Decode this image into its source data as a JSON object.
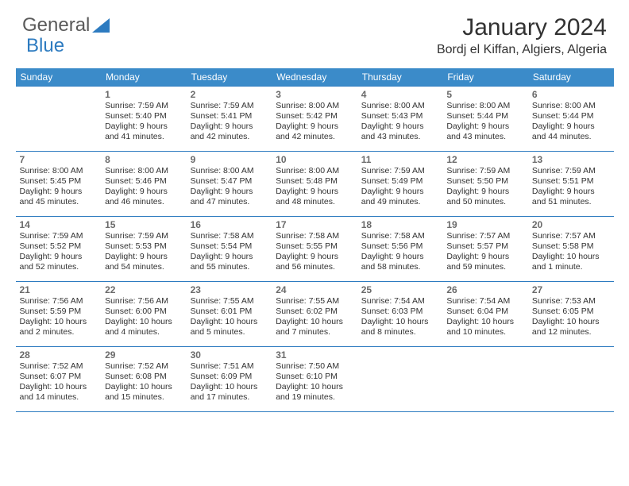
{
  "logo": {
    "part1": "General",
    "part2": "Blue"
  },
  "title": "January 2024",
  "location": "Bordj el Kiffan, Algiers, Algeria",
  "colors": {
    "header_bg": "#3b8bc9",
    "header_text": "#ffffff",
    "border": "#2d7bc0",
    "daynum": "#6a6a6a",
    "body_text": "#323232",
    "logo_gray": "#5a5a5a",
    "logo_blue": "#2d7bc0"
  },
  "weekdays": [
    "Sunday",
    "Monday",
    "Tuesday",
    "Wednesday",
    "Thursday",
    "Friday",
    "Saturday"
  ],
  "weeks": [
    [
      null,
      {
        "n": "1",
        "sr": "7:59 AM",
        "ss": "5:40 PM",
        "dl": "9 hours and 41 minutes."
      },
      {
        "n": "2",
        "sr": "7:59 AM",
        "ss": "5:41 PM",
        "dl": "9 hours and 42 minutes."
      },
      {
        "n": "3",
        "sr": "8:00 AM",
        "ss": "5:42 PM",
        "dl": "9 hours and 42 minutes."
      },
      {
        "n": "4",
        "sr": "8:00 AM",
        "ss": "5:43 PM",
        "dl": "9 hours and 43 minutes."
      },
      {
        "n": "5",
        "sr": "8:00 AM",
        "ss": "5:44 PM",
        "dl": "9 hours and 43 minutes."
      },
      {
        "n": "6",
        "sr": "8:00 AM",
        "ss": "5:44 PM",
        "dl": "9 hours and 44 minutes."
      }
    ],
    [
      {
        "n": "7",
        "sr": "8:00 AM",
        "ss": "5:45 PM",
        "dl": "9 hours and 45 minutes."
      },
      {
        "n": "8",
        "sr": "8:00 AM",
        "ss": "5:46 PM",
        "dl": "9 hours and 46 minutes."
      },
      {
        "n": "9",
        "sr": "8:00 AM",
        "ss": "5:47 PM",
        "dl": "9 hours and 47 minutes."
      },
      {
        "n": "10",
        "sr": "8:00 AM",
        "ss": "5:48 PM",
        "dl": "9 hours and 48 minutes."
      },
      {
        "n": "11",
        "sr": "7:59 AM",
        "ss": "5:49 PM",
        "dl": "9 hours and 49 minutes."
      },
      {
        "n": "12",
        "sr": "7:59 AM",
        "ss": "5:50 PM",
        "dl": "9 hours and 50 minutes."
      },
      {
        "n": "13",
        "sr": "7:59 AM",
        "ss": "5:51 PM",
        "dl": "9 hours and 51 minutes."
      }
    ],
    [
      {
        "n": "14",
        "sr": "7:59 AM",
        "ss": "5:52 PM",
        "dl": "9 hours and 52 minutes."
      },
      {
        "n": "15",
        "sr": "7:59 AM",
        "ss": "5:53 PM",
        "dl": "9 hours and 54 minutes."
      },
      {
        "n": "16",
        "sr": "7:58 AM",
        "ss": "5:54 PM",
        "dl": "9 hours and 55 minutes."
      },
      {
        "n": "17",
        "sr": "7:58 AM",
        "ss": "5:55 PM",
        "dl": "9 hours and 56 minutes."
      },
      {
        "n": "18",
        "sr": "7:58 AM",
        "ss": "5:56 PM",
        "dl": "9 hours and 58 minutes."
      },
      {
        "n": "19",
        "sr": "7:57 AM",
        "ss": "5:57 PM",
        "dl": "9 hours and 59 minutes."
      },
      {
        "n": "20",
        "sr": "7:57 AM",
        "ss": "5:58 PM",
        "dl": "10 hours and 1 minute."
      }
    ],
    [
      {
        "n": "21",
        "sr": "7:56 AM",
        "ss": "5:59 PM",
        "dl": "10 hours and 2 minutes."
      },
      {
        "n": "22",
        "sr": "7:56 AM",
        "ss": "6:00 PM",
        "dl": "10 hours and 4 minutes."
      },
      {
        "n": "23",
        "sr": "7:55 AM",
        "ss": "6:01 PM",
        "dl": "10 hours and 5 minutes."
      },
      {
        "n": "24",
        "sr": "7:55 AM",
        "ss": "6:02 PM",
        "dl": "10 hours and 7 minutes."
      },
      {
        "n": "25",
        "sr": "7:54 AM",
        "ss": "6:03 PM",
        "dl": "10 hours and 8 minutes."
      },
      {
        "n": "26",
        "sr": "7:54 AM",
        "ss": "6:04 PM",
        "dl": "10 hours and 10 minutes."
      },
      {
        "n": "27",
        "sr": "7:53 AM",
        "ss": "6:05 PM",
        "dl": "10 hours and 12 minutes."
      }
    ],
    [
      {
        "n": "28",
        "sr": "7:52 AM",
        "ss": "6:07 PM",
        "dl": "10 hours and 14 minutes."
      },
      {
        "n": "29",
        "sr": "7:52 AM",
        "ss": "6:08 PM",
        "dl": "10 hours and 15 minutes."
      },
      {
        "n": "30",
        "sr": "7:51 AM",
        "ss": "6:09 PM",
        "dl": "10 hours and 17 minutes."
      },
      {
        "n": "31",
        "sr": "7:50 AM",
        "ss": "6:10 PM",
        "dl": "10 hours and 19 minutes."
      },
      null,
      null,
      null
    ]
  ],
  "labels": {
    "sunrise": "Sunrise:",
    "sunset": "Sunset:",
    "daylight": "Daylight:"
  }
}
